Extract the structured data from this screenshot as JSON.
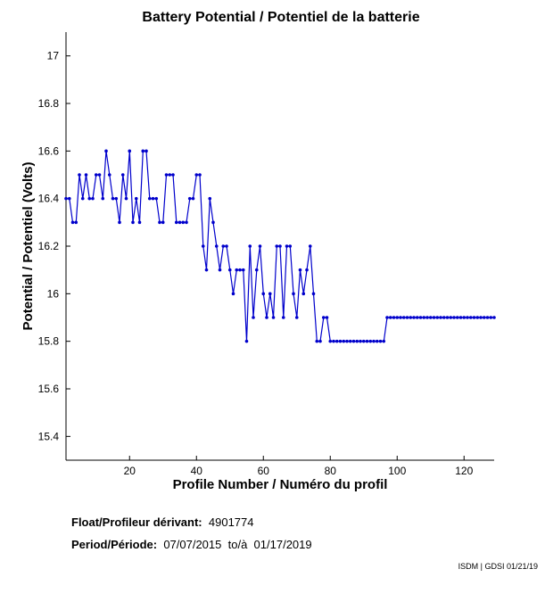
{
  "chart_data": {
    "type": "line",
    "title": "Battery Potential / Potentiel de la batterie",
    "xlabel": "Profile Number / Numéro du profil",
    "ylabel": "Potential / Potentiel (Volts)",
    "xlim": [
      1,
      129
    ],
    "ylim": [
      15.3,
      17.1
    ],
    "xticks": [
      20,
      40,
      60,
      80,
      100,
      120
    ],
    "yticks": [
      15.4,
      15.6,
      15.8,
      16,
      16.2,
      16.4,
      16.6,
      16.8,
      17
    ],
    "series": [
      {
        "name": "Battery Potential",
        "color": "#0000cc",
        "x": [
          1,
          2,
          3,
          4,
          5,
          6,
          7,
          8,
          9,
          10,
          11,
          12,
          13,
          14,
          15,
          16,
          17,
          18,
          19,
          20,
          21,
          22,
          23,
          24,
          25,
          26,
          27,
          28,
          29,
          30,
          31,
          32,
          33,
          34,
          35,
          36,
          37,
          38,
          39,
          40,
          41,
          42,
          43,
          44,
          45,
          46,
          47,
          48,
          49,
          50,
          51,
          52,
          53,
          54,
          55,
          56,
          57,
          58,
          59,
          60,
          61,
          62,
          63,
          64,
          65,
          66,
          67,
          68,
          69,
          70,
          71,
          72,
          73,
          74,
          75,
          76,
          77,
          78,
          79,
          80,
          81,
          82,
          83,
          84,
          85,
          86,
          87,
          88,
          89,
          90,
          91,
          92,
          93,
          94,
          95,
          96,
          97,
          98,
          99,
          100,
          101,
          102,
          103,
          104,
          105,
          106,
          107,
          108,
          109,
          110,
          111,
          112,
          113,
          114,
          115,
          116,
          117,
          118,
          119,
          120,
          121,
          122,
          123,
          124,
          125,
          126,
          127,
          128,
          129
        ],
        "values": [
          16.4,
          16.4,
          16.3,
          16.3,
          16.5,
          16.4,
          16.5,
          16.4,
          16.4,
          16.5,
          16.5,
          16.4,
          16.6,
          16.5,
          16.4,
          16.4,
          16.3,
          16.5,
          16.4,
          16.6,
          16.3,
          16.4,
          16.3,
          16.6,
          16.6,
          16.4,
          16.4,
          16.4,
          16.3,
          16.3,
          16.5,
          16.5,
          16.5,
          16.3,
          16.3,
          16.3,
          16.3,
          16.4,
          16.4,
          16.5,
          16.5,
          16.2,
          16.1,
          16.4,
          16.3,
          16.2,
          16.1,
          16.2,
          16.2,
          16.1,
          16.0,
          16.1,
          16.1,
          16.1,
          15.8,
          16.2,
          15.9,
          16.1,
          16.2,
          16.0,
          15.9,
          16.0,
          15.9,
          16.2,
          16.2,
          15.9,
          16.2,
          16.2,
          16.0,
          15.9,
          16.1,
          16.0,
          16.1,
          16.2,
          16.0,
          15.8,
          15.8,
          15.9,
          15.9,
          15.8,
          15.8,
          15.8,
          15.8,
          15.8,
          15.8,
          15.8,
          15.8,
          15.8,
          15.8,
          15.8,
          15.8,
          15.8,
          15.8,
          15.8,
          15.8,
          15.8,
          15.9,
          15.9,
          15.9,
          15.9,
          15.9,
          15.9,
          15.9,
          15.9,
          15.9,
          15.9,
          15.9,
          15.9,
          15.9,
          15.9,
          15.9,
          15.9,
          15.9,
          15.9,
          15.9,
          15.9,
          15.9,
          15.9,
          15.9,
          15.9,
          15.9,
          15.9,
          15.9,
          15.9,
          15.9,
          15.9,
          15.9,
          15.9,
          15.9
        ]
      }
    ]
  },
  "info": {
    "float_label": "Float/Profileur dérivant:",
    "float_value": "4901774",
    "period_label": "Period/Période:",
    "period_start": "07/07/2015",
    "period_sep": "to/à",
    "period_end": "01/17/2019"
  },
  "credit": "ISDM | GDSI 01/21/19"
}
